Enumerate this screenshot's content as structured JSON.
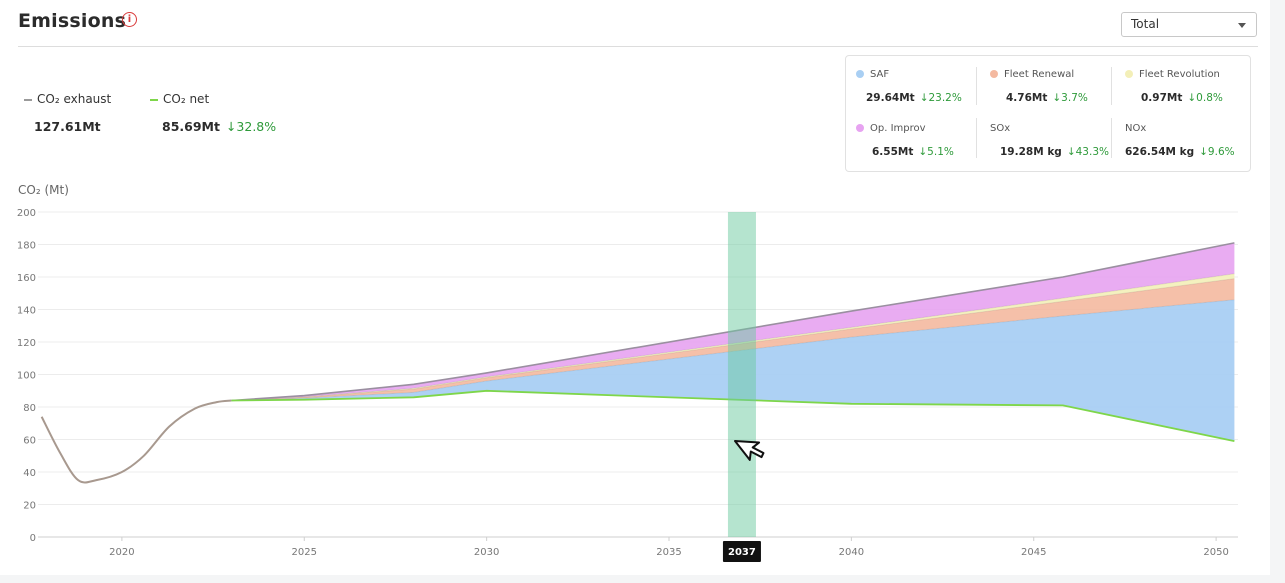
{
  "header": {
    "title": "Emissions",
    "info_icon": "info-circle-icon",
    "select_value": "Total"
  },
  "legend": {
    "exhaust": {
      "label": "CO₂ exhaust",
      "value": "127.61Mt",
      "color": "#9a9a9a"
    },
    "net": {
      "label": "CO₂ net",
      "value": "85.69Mt",
      "change": "↓32.8%",
      "color": "#7ed64a"
    }
  },
  "stats": [
    {
      "label": "SAF",
      "value": "29.64Mt",
      "change": "↓23.2%",
      "color": "#a9cff3"
    },
    {
      "label": "Fleet Renewal",
      "value": "4.76Mt",
      "change": "↓3.7%",
      "color": "#f4b9a0"
    },
    {
      "label": "Fleet Revolution",
      "value": "0.97Mt",
      "change": "↓0.8%",
      "color": "#f3efb8"
    },
    {
      "label": "Op. Improv",
      "value": "6.55Mt",
      "change": "↓5.1%",
      "color": "#e7a3f1"
    },
    {
      "label": "SOx",
      "value": "19.28M kg",
      "change": "↓43.3%",
      "color": ""
    },
    {
      "label": "NOx",
      "value": "626.54M kg",
      "change": "↓9.6%",
      "color": ""
    }
  ],
  "chart_data": {
    "type": "area",
    "ylabel": "CO₂ (Mt)",
    "ylim": [
      0,
      200
    ],
    "yticks": [
      0,
      20,
      40,
      60,
      80,
      100,
      120,
      140,
      160,
      180,
      200
    ],
    "xlim": [
      2017.7,
      2050.6
    ],
    "xticks": [
      2020,
      2025,
      2030,
      2035,
      2040,
      2045,
      2050
    ],
    "highlight_year": 2037,
    "history": {
      "x": [
        2017.8,
        2018.3,
        2018.8,
        2019.3,
        2020.0,
        2020.6,
        2021.3,
        2022.0,
        2022.6,
        2023.0
      ],
      "y": [
        74,
        52,
        35,
        35,
        40,
        50,
        68,
        79,
        83,
        84
      ]
    },
    "x": [
      2023,
      2025,
      2028,
      2030,
      2040,
      2045.8,
      2050.5
    ],
    "series": [
      {
        "name": "CO₂ net",
        "color": "#7ed64a",
        "values": [
          84,
          84.5,
          86,
          90,
          82,
          81,
          59
        ]
      },
      {
        "name": "SAF",
        "color": "#a9cff3",
        "values": [
          84,
          85.5,
          89,
          96,
          123,
          136,
          146
        ]
      },
      {
        "name": "Fleet Renewal",
        "color": "#f4b9a0",
        "values": [
          84,
          86,
          91,
          98,
          128,
          145,
          159
        ]
      },
      {
        "name": "Fleet Revolution",
        "color": "#f3efb8",
        "values": [
          84,
          86.2,
          91.5,
          98.5,
          129,
          147,
          162
        ]
      },
      {
        "name": "Op. Improv",
        "color": "#e7a3f1",
        "values": [
          84,
          87,
          94,
          101,
          139,
          160,
          181
        ]
      }
    ]
  }
}
